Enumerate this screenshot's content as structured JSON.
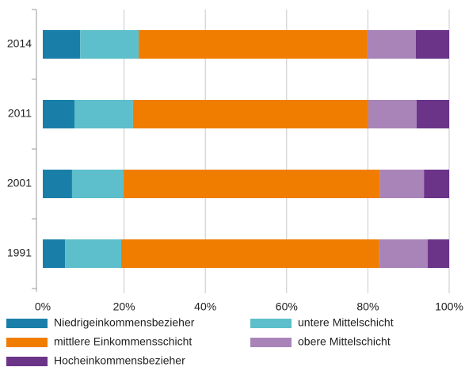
{
  "chart_data": {
    "type": "stacked-barh",
    "categories": [
      "2014",
      "2011",
      "2001",
      "1991"
    ],
    "series": [
      {
        "name": "Niedrigeinkommensbezieher",
        "color": "#1a7fa8",
        "values": [
          9.2,
          7.8,
          7.2,
          5.5
        ]
      },
      {
        "name": "untere Mittelschicht",
        "color": "#5cbfcb",
        "values": [
          14.4,
          14.4,
          12.7,
          13.8
        ]
      },
      {
        "name": "mittlere Einkommensschicht",
        "color": "#f07d00",
        "values": [
          56.3,
          57.9,
          63.1,
          63.5
        ]
      },
      {
        "name": "obere Mittelschicht",
        "color": "#a884b9",
        "values": [
          11.9,
          11.9,
          10.8,
          11.9
        ]
      },
      {
        "name": "Hocheinkommensbezieher",
        "color": "#6b3489",
        "values": [
          8.2,
          8.0,
          6.2,
          5.3
        ]
      }
    ],
    "xlim": [
      0,
      100
    ],
    "xticks": [
      {
        "value": 0,
        "label": "0%"
      },
      {
        "value": 20,
        "label": "20%"
      },
      {
        "value": 40,
        "label": "40%"
      },
      {
        "value": 60,
        "label": "60%"
      },
      {
        "value": 80,
        "label": "80%"
      },
      {
        "value": 100,
        "label": "100%"
      }
    ],
    "grid": true
  }
}
